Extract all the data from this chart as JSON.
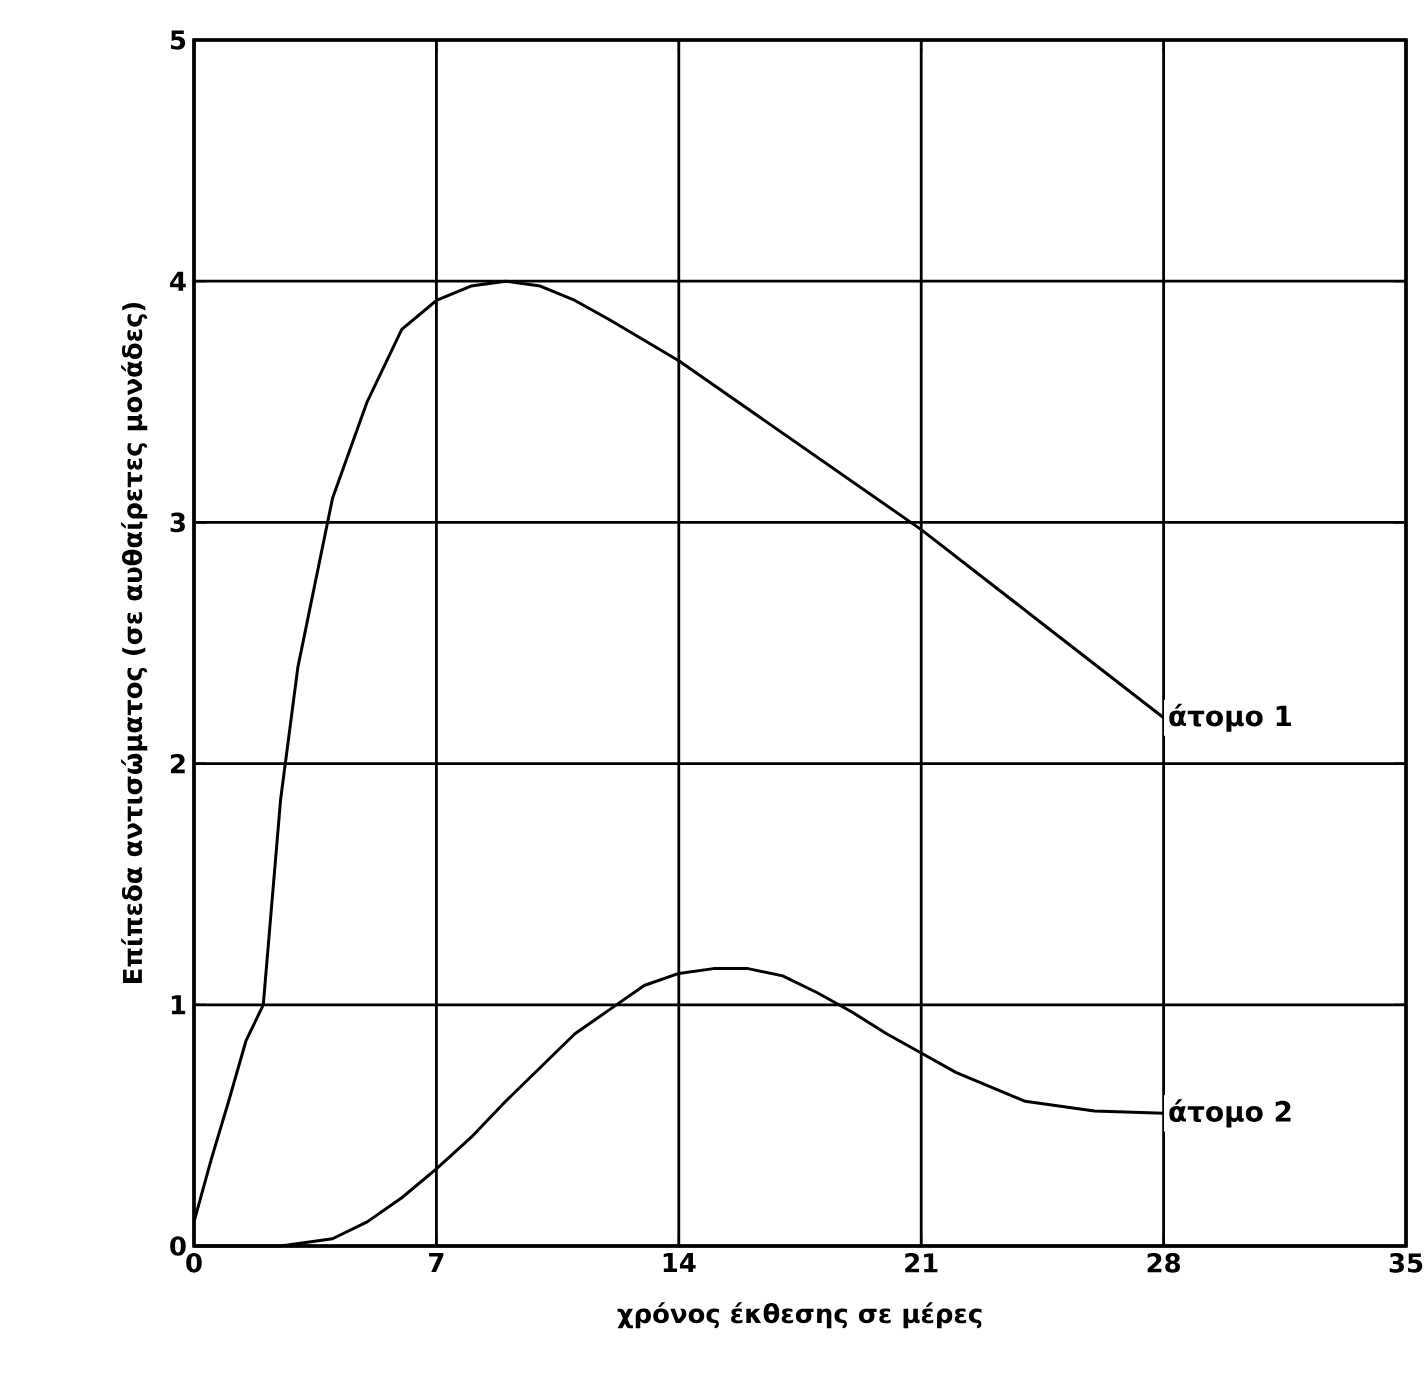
{
  "chart_data": {
    "type": "line",
    "xlabel": "χρόνος έκθεσης σε μέρες",
    "ylabel": "Επίπεδα αντισώματος (σε αυθαίρετες μονάδες)",
    "xlim": [
      0,
      35
    ],
    "ylim": [
      0,
      5
    ],
    "xticks": [
      0,
      7,
      14,
      21,
      28,
      35
    ],
    "yticks": [
      0,
      1,
      2,
      3,
      4,
      5
    ],
    "grid": true,
    "marker": "none",
    "line_style": "solid",
    "series": [
      {
        "name": "άτομο 1",
        "color": "#000000",
        "x": [
          0,
          0.5,
          1,
          1.5,
          2,
          2.5,
          3,
          4,
          5,
          6,
          7,
          8,
          9,
          10,
          11,
          12,
          14,
          17.5,
          21,
          24.5,
          28
        ],
        "values": [
          0.1,
          0.36,
          0.6,
          0.85,
          1.0,
          1.85,
          2.4,
          3.1,
          3.5,
          3.8,
          3.92,
          3.98,
          4.0,
          3.98,
          3.92,
          3.84,
          3.67,
          3.32,
          2.97,
          2.58,
          2.19
        ]
      },
      {
        "name": "άτομο 2",
        "color": "#000000",
        "x": [
          0,
          2.5,
          4,
          5,
          6,
          7,
          8,
          9,
          10,
          11,
          12,
          13,
          14,
          15,
          16,
          17,
          18,
          19,
          20,
          21,
          22,
          24,
          26,
          28
        ],
        "values": [
          0,
          0,
          0.03,
          0.1,
          0.2,
          0.32,
          0.45,
          0.6,
          0.74,
          0.88,
          0.98,
          1.08,
          1.13,
          1.15,
          1.15,
          1.12,
          1.05,
          0.97,
          0.88,
          0.8,
          0.72,
          0.6,
          0.56,
          0.55
        ]
      }
    ]
  }
}
